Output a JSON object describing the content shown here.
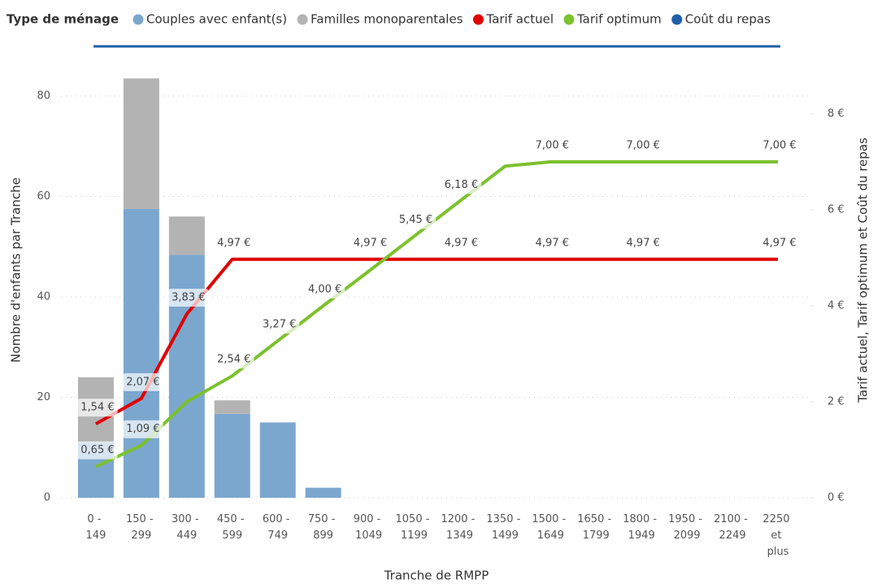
{
  "chart_data": {
    "type": "bar",
    "legend_title": "Type de ménage",
    "x_label": "Tranche de RMPP",
    "y_label": "Nombre d'enfants par Tranche",
    "y2_label": "Tarif actuel, Tarif optimum et Coût du repas",
    "categories": [
      "0 - 149",
      "150 - 299",
      "300 - 449",
      "450 - 599",
      "600 - 749",
      "750 - 899",
      "900 - 1049",
      "1050 - 1199",
      "1200 - 1349",
      "1350 - 1499",
      "1500 - 1649",
      "1650 - 1799",
      "1800 - 1949",
      "1950 - 2099",
      "2100 - 2249",
      "2250 et plus"
    ],
    "series": [
      {
        "name": "Couples avec enfant(s)",
        "color": "#7ba7cf",
        "values": [
          11,
          57.5,
          48.4,
          16.7,
          15,
          2,
          null,
          null,
          null,
          null,
          null,
          null,
          null,
          null,
          null,
          null
        ]
      },
      {
        "name": "Familles monoparentales",
        "color": "#b3b3b3",
        "values": [
          13,
          26,
          7.6,
          2.7,
          null,
          null,
          null,
          null,
          null,
          null,
          null,
          null,
          null,
          null,
          null,
          null
        ]
      },
      {
        "name": "Tarif actuel",
        "color": "#e00000",
        "axis": "y2",
        "values": [
          1.54,
          2.07,
          3.83,
          4.97,
          4.97,
          4.97,
          4.97,
          4.97,
          4.97,
          4.97,
          4.97,
          4.97,
          4.97,
          4.97,
          4.97,
          4.97
        ],
        "value_labels": [
          "1,54 €",
          "2,07 €",
          "3,83 €",
          "4,97 €",
          null,
          null,
          "4,97 €",
          null,
          "4,97 €",
          null,
          "4,97 €",
          null,
          "4,97 €",
          null,
          null,
          "4,97 €"
        ]
      },
      {
        "name": "Tarif optimum",
        "color": "#7cc12e",
        "axis": "y2",
        "values": [
          0.65,
          1.09,
          2.0,
          2.54,
          3.27,
          4.0,
          4.72,
          5.45,
          6.18,
          6.91,
          7,
          7,
          7,
          7,
          7,
          7
        ],
        "value_labels": [
          "0,65 €",
          "1,09 €",
          null,
          "2,54 €",
          "3,27 €",
          "4,00 €",
          null,
          "5,45 €",
          "6,18 €",
          null,
          "7,00 €",
          null,
          "7,00 €",
          null,
          null,
          "7,00 €"
        ]
      },
      {
        "name": "Coût du repas",
        "color": "#1f5fa8",
        "axis": "y2"
      }
    ],
    "ylim": [
      0,
      86
    ],
    "yticks": [
      0,
      20,
      40,
      60,
      80
    ],
    "y2lim": [
      0,
      9
    ],
    "y2ticks": [
      {
        "value": 0,
        "label": "0 €"
      },
      {
        "value": 2,
        "label": "2 €"
      },
      {
        "value": 4,
        "label": "4 €"
      },
      {
        "value": 6,
        "label": "6 €"
      },
      {
        "value": 8,
        "label": "8 €"
      }
    ],
    "grid": true
  }
}
